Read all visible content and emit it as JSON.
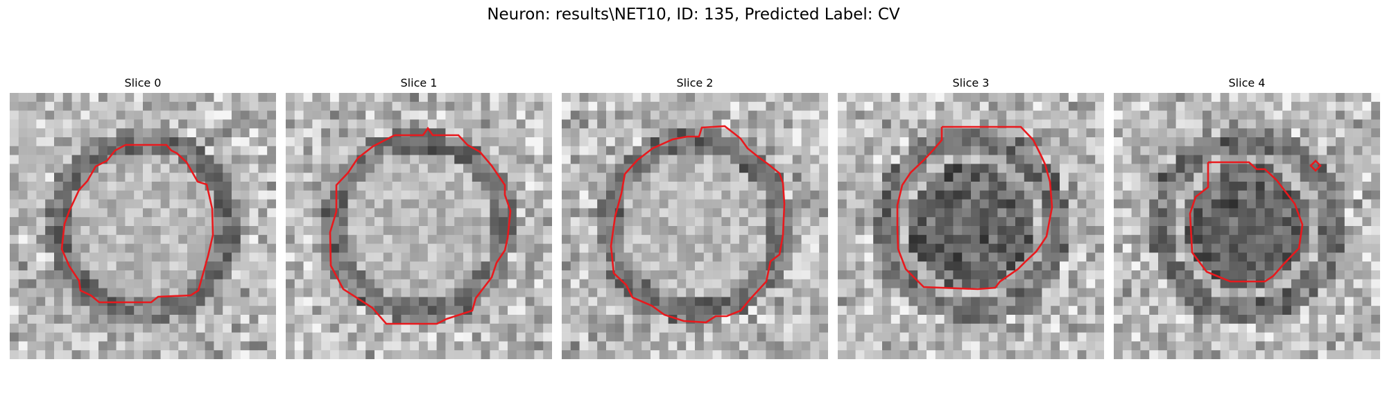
{
  "figure": {
    "title": "Neuron: results\\NET10, ID: 135, Predicted Label: CV"
  },
  "panels": [
    {
      "title": "Slice 0",
      "dark_blob": false
    },
    {
      "title": "Slice 1",
      "dark_blob": false
    },
    {
      "title": "Slice 2",
      "dark_blob": false
    },
    {
      "title": "Slice 3",
      "dark_blob": true
    },
    {
      "title": "Slice 4",
      "dark_blob": true
    }
  ],
  "colors": {
    "contour": "#e8191d",
    "background": "#ffffff"
  },
  "image": {
    "colormap": "gray",
    "grid_size": 30
  }
}
